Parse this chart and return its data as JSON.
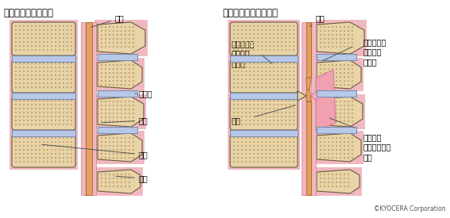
{
  "title_left": "正常な脊椎の断面図",
  "title_right": "脊柱管狭窄症の断面図",
  "copyright": "©KYOCERA Corporation",
  "bg_color": "#ffffff",
  "bone_fill": "#e8d4a8",
  "bone_stipple": "#c8a870",
  "bone_outline": "#6b5a3a",
  "disc_fill": "#b8c8e8",
  "disc_outline": "#7890b0",
  "spinal_cord_fill": "#e8a060",
  "spinal_cord_outline": "#b07030",
  "pink_bg": "#f0b8c0",
  "pink_outline": "#d08090",
  "label_color": "#222222",
  "line_color": "#555555",
  "font_size": 7.0
}
